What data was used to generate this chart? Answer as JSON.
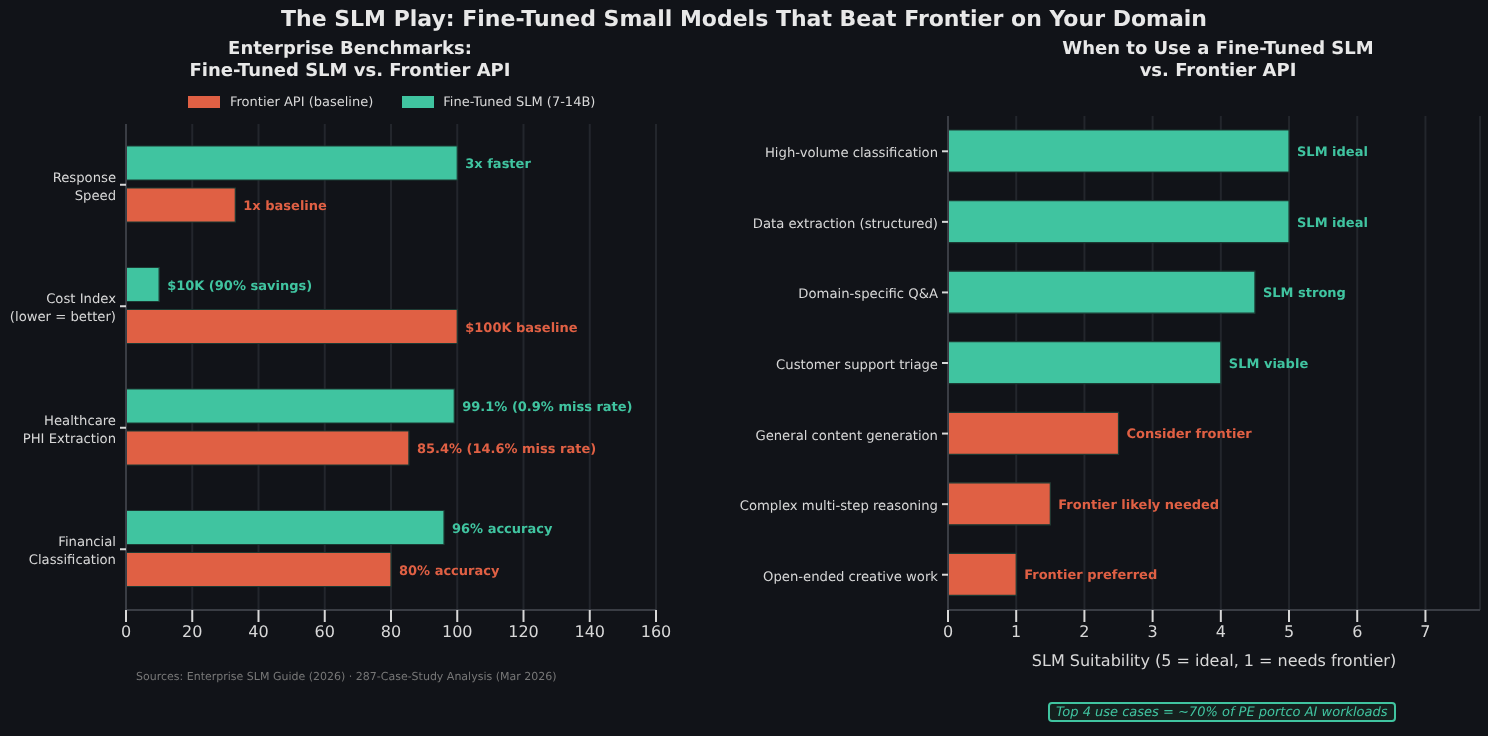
{
  "chart_data": [
    {
      "type": "bar",
      "orientation": "horizontal",
      "title": "The SLM Play: Fine-Tuned Small Models That Beat Frontier on Your Domain",
      "subtitle": "Enterprise Benchmarks:\nFine-Tuned SLM vs. Frontier API",
      "categories": [
        "Response\nSpeed",
        "Cost Index\n(lower = better)",
        "Healthcare\nPHI Extraction",
        "Financial\nClassification"
      ],
      "series": [
        {
          "name": "Frontier API (baseline)",
          "color": "#e06044",
          "values": [
            33,
            100,
            85.4,
            80
          ],
          "value_labels": [
            null,
            "$100K baseline",
            "85.4% (14.6% miss rate)",
            "80% accuracy"
          ]
        },
        {
          "name": "Fine-Tuned SLM (7-14B)",
          "color": "#40c4a0",
          "values": [
            100,
            10,
            99.1,
            96
          ],
          "value_labels": [
            null,
            null,
            "99.1% (0.9% miss rate)",
            "96% accuracy"
          ]
        }
      ],
      "xlim": [
        0,
        160
      ],
      "xticks": [
        0,
        20,
        40,
        60,
        80,
        100,
        120,
        140,
        160
      ],
      "grid": "x",
      "legend": "top",
      "annotations": [
        "Sources: Enterprise SLM Guide (2026) · 287-Case-Study Analysis (Mar 2026)",
        {
          "text": "1x baseline",
          "x": 33,
          "y": "Response\nSpeed"
        },
        {
          "text": "3x faster",
          "x": 100,
          "y": "Response\nSpeed"
        },
        {
          "text": "$10K (90% savings)",
          "x": 10,
          "y": "Cost Index\n(lower = better)"
        }
      ]
    },
    {
      "type": "bar",
      "orientation": "horizontal",
      "title": "When to Use a Fine-Tuned SLM\nvs. Frontier API",
      "categories": [
        "High-volume classification",
        "Data extraction (structured)",
        "Domain-specific Q&A",
        "Customer support triage",
        "General content generation",
        "Complex multi-step reasoning",
        "Open-ended creative work"
      ],
      "values": [
        5,
        5,
        4.5,
        4,
        2.5,
        1.5,
        1
      ],
      "colors": [
        "#40c4a0",
        "#40c4a0",
        "#40c4a0",
        "#40c4a0",
        "#e06044",
        "#e06044",
        "#e06044"
      ],
      "value_labels": [
        "SLM ideal",
        "SLM ideal",
        "SLM strong",
        "SLM viable",
        "Consider frontier",
        "Frontier likely needed",
        "Frontier preferred"
      ],
      "xlim": [
        0,
        7.8
      ],
      "xticks": [
        0,
        1,
        2,
        3,
        4,
        5,
        6,
        7
      ],
      "xlabel": "SLM Suitability (5 = ideal, 1 = needs frontier)",
      "grid": "x",
      "annotations": [
        "Top 4 use cases = ~70% of PE portco AI workloads"
      ]
    }
  ]
}
